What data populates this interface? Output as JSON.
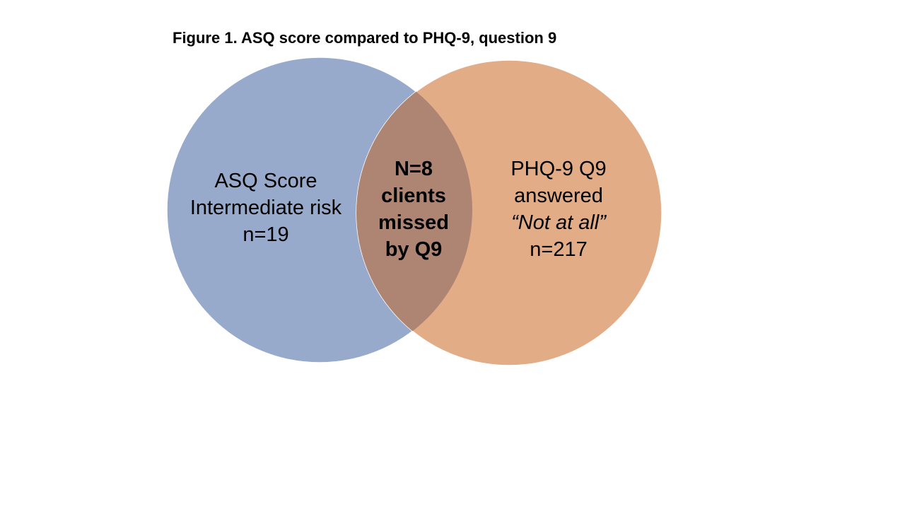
{
  "title": "Figure 1. ASQ score compared to PHQ-9, question 9",
  "colors": {
    "left_circle": "#97aacb",
    "right_circle": "#e2ac87",
    "overlap": "#ae8472",
    "outline": "#ffffff"
  },
  "venn": {
    "left_set": {
      "lines": [
        "ASQ Score",
        "Intermediate risk",
        "n=19"
      ],
      "count": 19
    },
    "right_set": {
      "lines": [
        "PHQ-9 Q9",
        "answered",
        "“Not at all”",
        "n=217"
      ],
      "count": 217
    },
    "overlap": {
      "lines": [
        "N=8",
        "clients",
        "missed",
        "by Q9"
      ],
      "count": 8
    }
  }
}
